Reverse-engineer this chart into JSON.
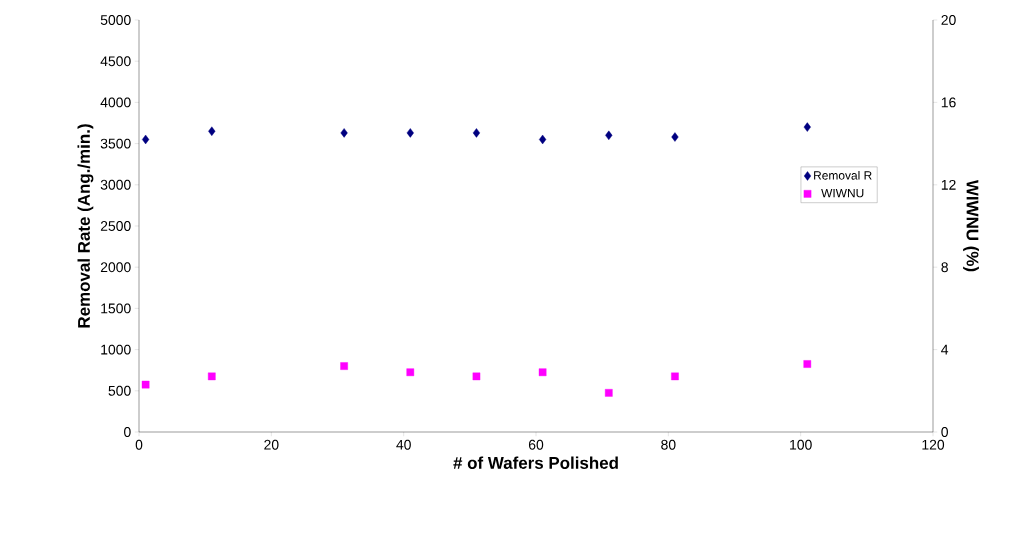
{
  "chart_data": {
    "type": "scatter",
    "xlabel": "# of Wafers Polished",
    "ylabel": "Removal Rate (Ang./min.)",
    "y2label": "WIWNU (%)",
    "x": [
      1,
      11,
      31,
      41,
      51,
      61,
      71,
      81,
      101
    ],
    "series": [
      {
        "name": "Removal R",
        "color": "#000080",
        "marker": "diamond",
        "values": [
          3550,
          3650,
          3630,
          3630,
          3630,
          3550,
          3600,
          3580,
          3700
        ]
      },
      {
        "name": "WIWNU",
        "color": "#ff00ff",
        "marker": "square",
        "axis": "y2",
        "values": [
          2.3,
          2.7,
          3.2,
          2.9,
          2.7,
          2.9,
          1.9,
          2.7,
          3.3
        ]
      }
    ],
    "xlim": [
      0,
      120
    ],
    "xticks": [
      0,
      20,
      40,
      60,
      80,
      100,
      120
    ],
    "ylim": [
      0,
      5000
    ],
    "yticks": [
      0,
      500,
      1000,
      1500,
      2000,
      2500,
      3000,
      3500,
      4000,
      4500,
      5000
    ],
    "y2lim": [
      0,
      20
    ],
    "y2ticks": [
      0,
      4,
      8,
      12,
      16,
      20
    ],
    "grid": false,
    "legend": "right"
  }
}
